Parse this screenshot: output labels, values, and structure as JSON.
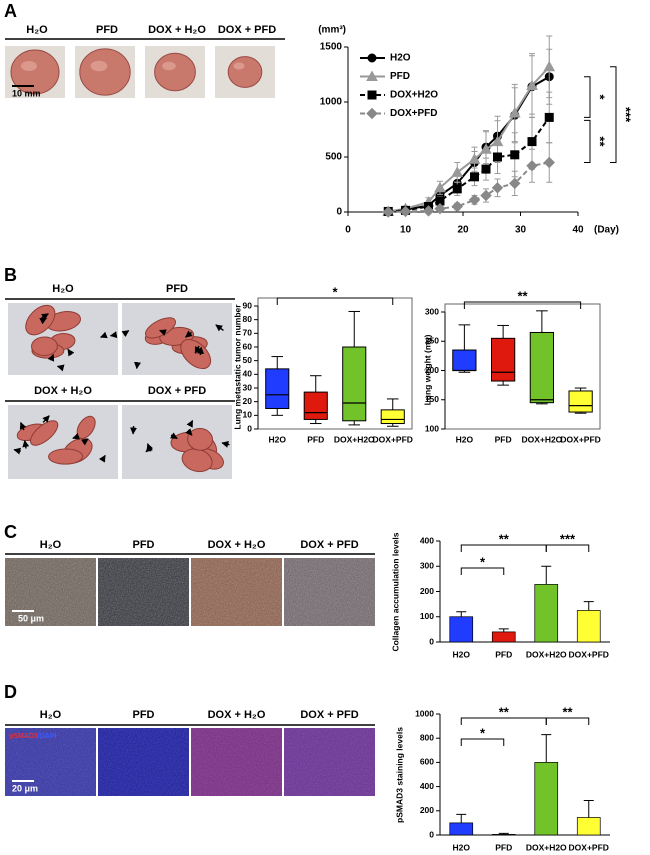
{
  "panels": [
    {
      "label": "A",
      "images": [
        "H₂O",
        "PFD",
        "DOX + H₂O",
        "DOX + PFD"
      ],
      "scale_bar": "10 mm"
    },
    {
      "label": "B",
      "images": [
        "H₂O",
        "PFD",
        "DOX + H₂O",
        "DOX + PFD"
      ]
    },
    {
      "label": "C",
      "images": [
        "H₂O",
        "PFD",
        "DOX + H₂O",
        "DOX + PFD"
      ],
      "scale_bar": "50 μm"
    },
    {
      "label": "D",
      "images": [
        "H₂O",
        "PFD",
        "DOX + H₂O",
        "DOX + PFD"
      ],
      "scale_bar": "20 μm",
      "stain": [
        "pSMAD3",
        "/DAPI"
      ]
    }
  ],
  "chart_data": [
    {
      "type": "line",
      "y_label": "(mm³)",
      "x_label": "(Day)",
      "x": [
        7,
        10,
        14,
        16,
        19,
        22,
        24,
        26,
        29,
        32,
        35
      ],
      "xlim": [
        0,
        40
      ],
      "xticks": [
        0,
        10,
        20,
        30,
        40
      ],
      "ylim": [
        0,
        1500
      ],
      "yticks": [
        0,
        500,
        1000,
        1500
      ],
      "series": [
        {
          "name": "H2O",
          "color": "#000000",
          "dash": false,
          "marker": "circle",
          "values": [
            5,
            20,
            60,
            150,
            260,
            450,
            590,
            690,
            880,
            1140,
            1230
          ],
          "errors": [
            10,
            20,
            30,
            50,
            80,
            100,
            150,
            180,
            250,
            280,
            250
          ]
        },
        {
          "name": "PFD",
          "color": "#999999",
          "dash": false,
          "marker": "triangle",
          "values": [
            5,
            30,
            90,
            220,
            360,
            480,
            570,
            640,
            900,
            1150,
            1320
          ],
          "errors": [
            10,
            20,
            40,
            60,
            90,
            110,
            160,
            190,
            260,
            290,
            280
          ]
        },
        {
          "name": "DOX+H2O",
          "color": "#000000",
          "dash": true,
          "marker": "square",
          "values": [
            5,
            15,
            50,
            100,
            210,
            320,
            390,
            500,
            520,
            640,
            860
          ],
          "errors": [
            5,
            10,
            20,
            40,
            60,
            80,
            100,
            150,
            200,
            250,
            230
          ]
        },
        {
          "name": "DOX+PFD",
          "color": "#888888",
          "dash": true,
          "marker": "diamond",
          "values": [
            0,
            5,
            10,
            30,
            50,
            110,
            150,
            220,
            260,
            420,
            450
          ],
          "errors": [
            5,
            5,
            10,
            15,
            30,
            40,
            60,
            80,
            110,
            150,
            180
          ]
        }
      ],
      "annotations": [
        "*",
        "**",
        "***"
      ]
    },
    {
      "type": "box",
      "y_label": "Lung metastatic tumor number",
      "categories": [
        "H2O",
        "PFD",
        "DOX+H2O",
        "DOX+PFD"
      ],
      "colors": [
        "#1f3cff",
        "#e0190f",
        "#72c22a",
        "#ffff33"
      ],
      "boxes": [
        {
          "min": 10,
          "q1": 15,
          "median": 25,
          "q3": 44,
          "max": 53
        },
        {
          "min": 4,
          "q1": 7,
          "median": 12,
          "q3": 27,
          "max": 39
        },
        {
          "min": 3,
          "q1": 6,
          "median": 19,
          "q3": 60,
          "max": 86
        },
        {
          "min": 2,
          "q1": 4,
          "median": 7,
          "q3": 14,
          "max": 22
        }
      ],
      "ylim": [
        0,
        90
      ],
      "yticks": [
        0,
        10,
        20,
        30,
        40,
        50,
        60,
        70,
        80,
        90
      ],
      "annotations": [
        "*"
      ]
    },
    {
      "type": "box",
      "y_label": "Lung weight (mg)",
      "categories": [
        "H2O",
        "PFD",
        "DOX+H2O",
        "DOX+PFD"
      ],
      "colors": [
        "#1f3cff",
        "#e0190f",
        "#72c22a",
        "#ffff33"
      ],
      "boxes": [
        {
          "min": 197,
          "q1": 200,
          "median": 200,
          "q3": 235,
          "max": 278
        },
        {
          "min": 175,
          "q1": 182,
          "median": 197,
          "q3": 255,
          "max": 277
        },
        {
          "min": 143,
          "q1": 145,
          "median": 150,
          "q3": 265,
          "max": 302
        },
        {
          "min": 127,
          "q1": 129,
          "median": 140,
          "q3": 165,
          "max": 170
        }
      ],
      "ylim": [
        100,
        300
      ],
      "yticks": [
        100,
        150,
        200,
        250,
        300
      ],
      "annotations": [
        "**"
      ]
    },
    {
      "type": "bar",
      "y_label": "Collagen accumulation levels",
      "categories": [
        "H2O",
        "PFD",
        "DOX+H2O",
        "DOX+PFD"
      ],
      "colors": [
        "#1f3cff",
        "#e0190f",
        "#72c22a",
        "#ffff33"
      ],
      "values": [
        100,
        40,
        228,
        125
      ],
      "errors": [
        20,
        12,
        72,
        35
      ],
      "ylim": [
        0,
        400
      ],
      "yticks": [
        0,
        100,
        200,
        300,
        400
      ],
      "annotations": [
        "*",
        "**",
        "***"
      ]
    },
    {
      "type": "bar",
      "y_label": "pSMAD3 staining levels",
      "categories": [
        "H2O",
        "PFD",
        "DOX+H2O",
        "DOX+PFD"
      ],
      "colors": [
        "#1f3cff",
        "#e0190f",
        "#72c22a",
        "#ffff33"
      ],
      "values": [
        100,
        5,
        600,
        145
      ],
      "errors": [
        70,
        8,
        230,
        140
      ],
      "ylim": [
        0,
        1000
      ],
      "yticks": [
        0,
        200,
        400,
        600,
        800,
        1000
      ],
      "annotations": [
        "*",
        "**",
        "**"
      ]
    }
  ]
}
